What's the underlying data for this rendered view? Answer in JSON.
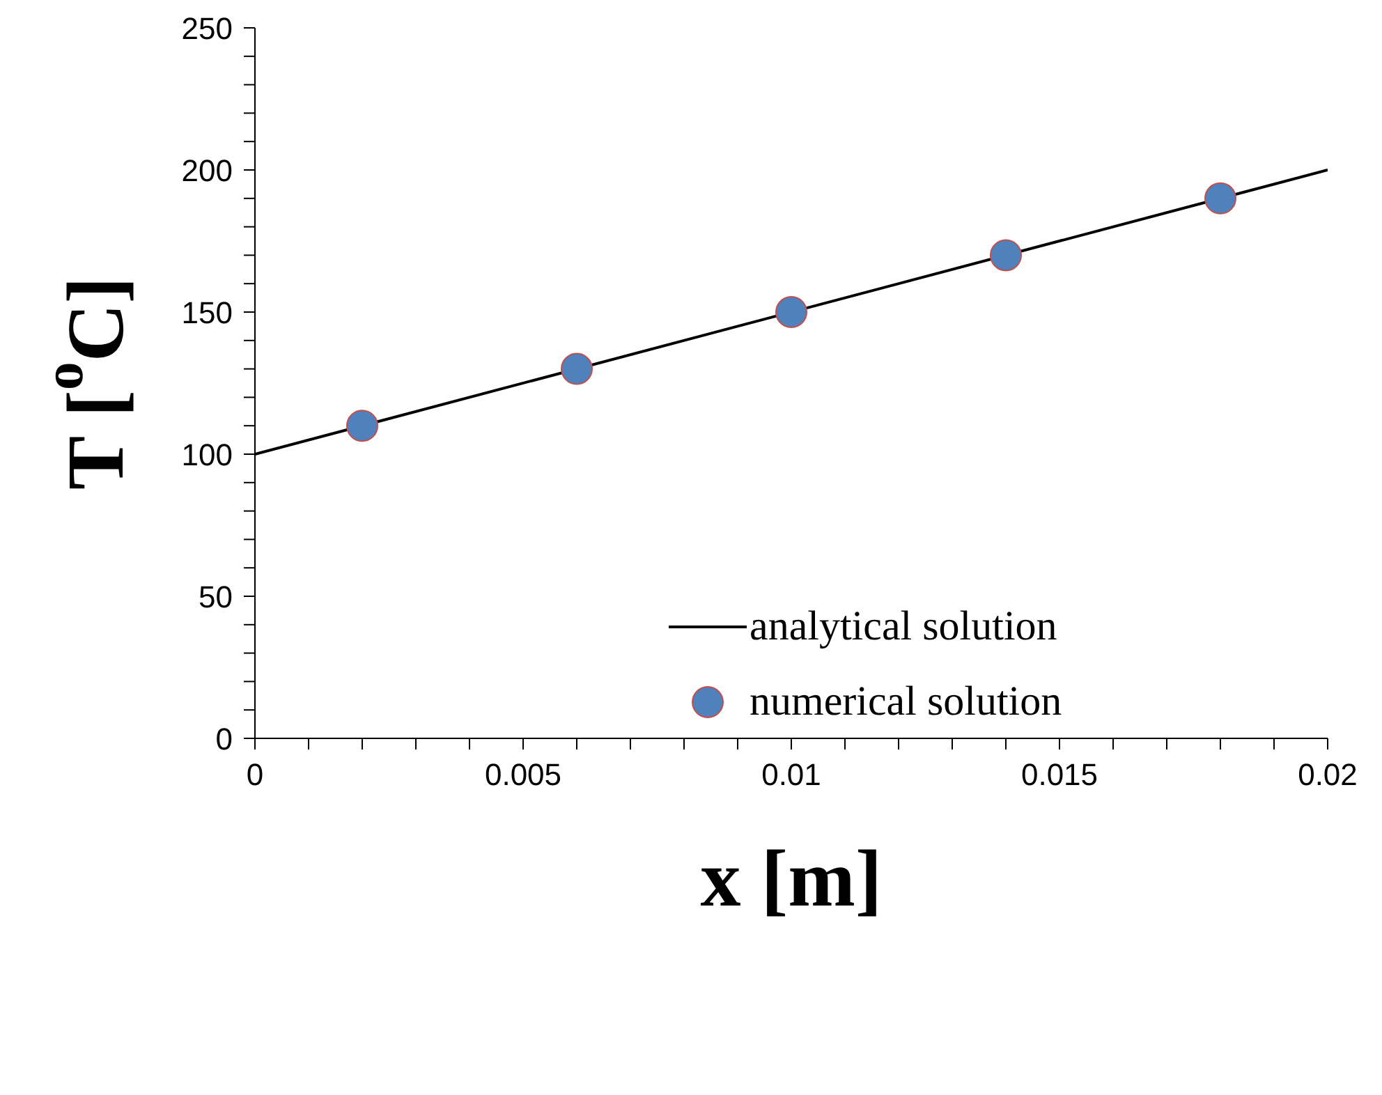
{
  "chart_data": {
    "type": "line",
    "xlabel": "x [m]",
    "ylabel": "T [$^{o}$C]",
    "xlim": [
      0,
      0.02
    ],
    "ylim": [
      0,
      250
    ],
    "xticks": [
      0,
      {
        "value": 0.001,
        "label": null
      },
      {
        "value": 0.002,
        "label": null
      },
      {
        "value": 0.003,
        "label": null
      },
      {
        "value": 0.004,
        "label": null
      },
      0.005,
      {
        "value": 0.006,
        "label": null
      },
      {
        "value": 0.007,
        "label": null
      },
      {
        "value": 0.008,
        "label": null
      },
      {
        "value": 0.009,
        "label": null
      },
      0.01,
      {
        "value": 0.011,
        "label": null
      },
      {
        "value": 0.012,
        "label": null
      },
      {
        "value": 0.013,
        "label": null
      },
      {
        "value": 0.014,
        "label": null
      },
      0.015,
      {
        "value": 0.016,
        "label": null
      },
      {
        "value": 0.017,
        "label": null
      },
      {
        "value": 0.018,
        "label": null
      },
      {
        "value": 0.019,
        "label": null
      },
      0.02
    ],
    "yticks": [
      0,
      {
        "value": 10,
        "label": null
      },
      {
        "value": 20,
        "label": null
      },
      {
        "value": 30,
        "label": null
      },
      {
        "value": 40,
        "label": null
      },
      50,
      {
        "value": 60,
        "label": null
      },
      {
        "value": 70,
        "label": null
      },
      {
        "value": 80,
        "label": null
      },
      {
        "value": 90,
        "label": null
      },
      100,
      {
        "value": 110,
        "label": null
      },
      {
        "value": 120,
        "label": null
      },
      {
        "value": 130,
        "label": null
      },
      {
        "value": 140,
        "label": null
      },
      150,
      {
        "value": 160,
        "label": null
      },
      {
        "value": 170,
        "label": null
      },
      {
        "value": 180,
        "label": null
      },
      {
        "value": 190,
        "label": null
      },
      200,
      {
        "value": 210,
        "label": null
      },
      {
        "value": 220,
        "label": null
      },
      {
        "value": 230,
        "label": null
      },
      {
        "value": 240,
        "label": null
      },
      250
    ],
    "grid": false,
    "legend": "bottom right",
    "series": [
      {
        "name": "analytical solution",
        "color": "#000000",
        "marker": "none",
        "line_style": "solid",
        "x": [
          0,
          0.02
        ],
        "values": [
          100,
          200
        ]
      },
      {
        "name": "numerical solution",
        "type": "scatter",
        "color": "#4f81bd",
        "marker": "circle",
        "x": [
          0.002,
          0.006,
          0.01,
          0.014,
          0.018
        ],
        "values": [
          110,
          130,
          150,
          170,
          190
        ]
      }
    ]
  }
}
